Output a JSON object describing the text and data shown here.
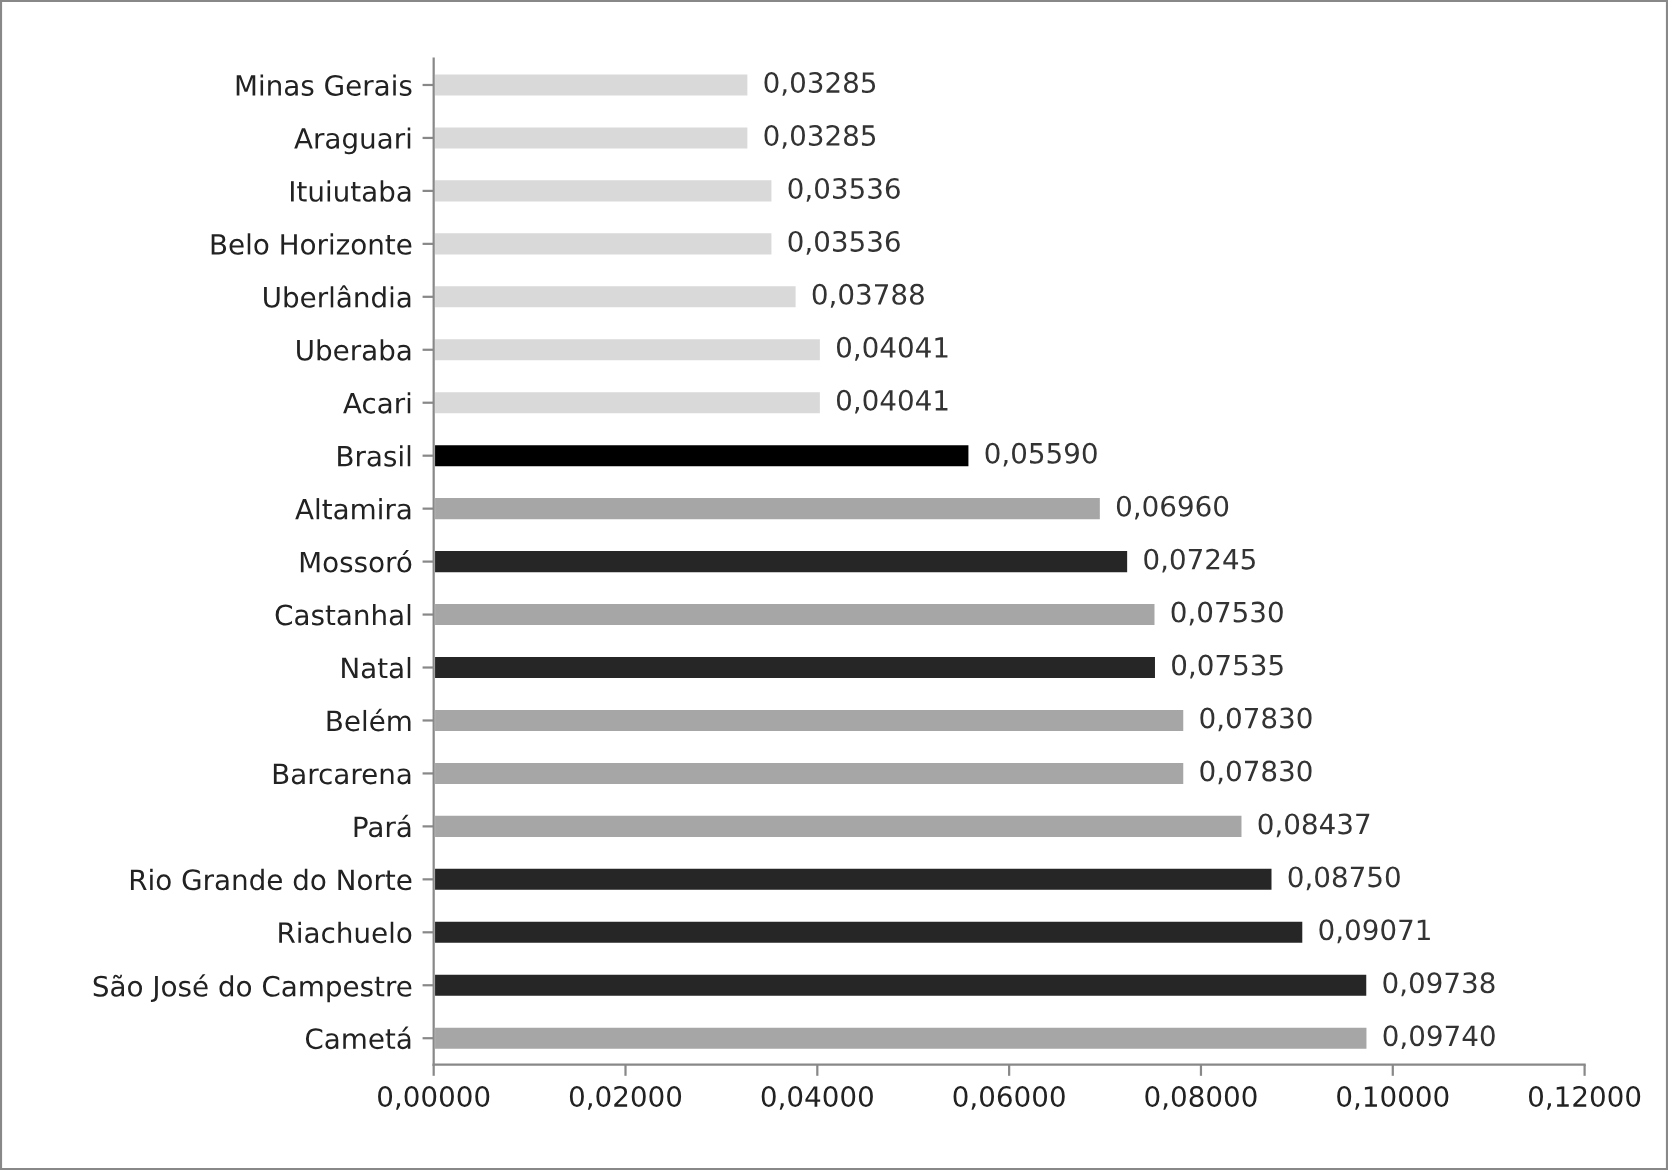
{
  "chart_data": {
    "type": "bar",
    "orientation": "horizontal",
    "categories": [
      "Minas Gerais",
      "Araguari",
      "Ituiutaba",
      "Belo Horizonte",
      "Uberlândia",
      "Uberaba",
      "Acari",
      "Brasil",
      "Altamira",
      "Mossoró",
      "Castanhal",
      "Natal",
      "Belém",
      "Barcarena",
      "Pará",
      "Rio Grande do Norte",
      "Riachuelo",
      "São José do Campestre",
      "Cametá"
    ],
    "values": [
      0.03285,
      0.03285,
      0.03536,
      0.03536,
      0.03788,
      0.04041,
      0.04041,
      0.0559,
      0.0696,
      0.07245,
      0.0753,
      0.07535,
      0.0783,
      0.0783,
      0.08437,
      0.0875,
      0.09071,
      0.09738,
      0.0974
    ],
    "value_labels": [
      "0,03285",
      "0,03285",
      "0,03536",
      "0,03536",
      "0,03788",
      "0,04041",
      "0,04041",
      "0,05590",
      "0,06960",
      "0,07245",
      "0,07530",
      "0,07535",
      "0,07830",
      "0,07830",
      "0,08437",
      "0,08750",
      "0,09071",
      "0,09738",
      "0,09740"
    ],
    "colors": [
      "#d9d9d9",
      "#d9d9d9",
      "#d9d9d9",
      "#d9d9d9",
      "#d9d9d9",
      "#d9d9d9",
      "#d9d9d9",
      "#000000",
      "#a6a6a6",
      "#262626",
      "#a6a6a6",
      "#262626",
      "#a6a6a6",
      "#a6a6a6",
      "#a6a6a6",
      "#262626",
      "#262626",
      "#262626",
      "#a6a6a6"
    ],
    "xlim": [
      0,
      0.12
    ],
    "xticks": [
      {
        "value": 0,
        "label": "0,00000"
      },
      {
        "value": 0.02,
        "label": "0,02000"
      },
      {
        "value": 0.04,
        "label": "0,04000"
      },
      {
        "value": 0.06,
        "label": "0,06000"
      },
      {
        "value": 0.08,
        "label": "0,08000"
      },
      {
        "value": 0.1,
        "label": "0,10000"
      },
      {
        "value": 0.12,
        "label": "0,12000"
      }
    ],
    "grid": false,
    "legend": false
  }
}
